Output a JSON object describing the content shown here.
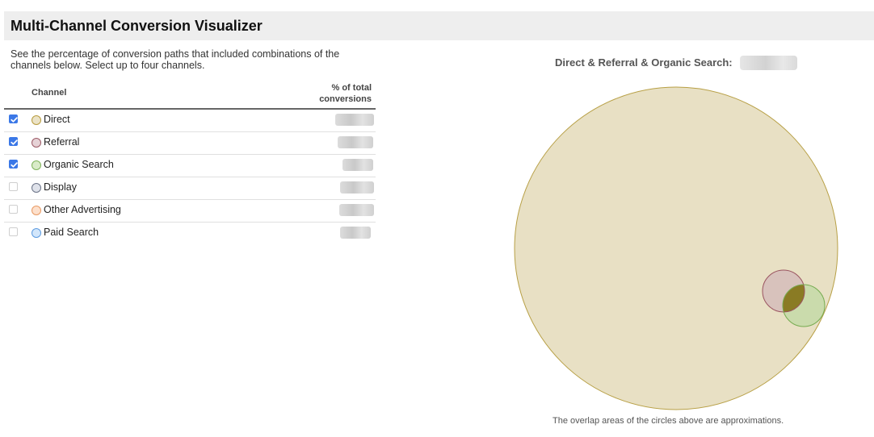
{
  "header": {
    "title": "Multi-Channel Conversion Visualizer"
  },
  "description": "See the percentage of conversion paths that included combinations of the channels below. Select up to four channels.",
  "table": {
    "col_channel": "Channel",
    "col_pct_line1": "% of total",
    "col_pct_line2": "conversions",
    "rows": [
      {
        "label": "Direct",
        "checked": true,
        "dot_fill": "#ebe3c7",
        "dot_border": "#b89b3e"
      },
      {
        "label": "Referral",
        "checked": true,
        "dot_fill": "#e6d2d6",
        "dot_border": "#9c5a66"
      },
      {
        "label": "Organic Search",
        "checked": true,
        "dot_fill": "#d9ebc8",
        "dot_border": "#7fb35b"
      },
      {
        "label": "Display",
        "checked": false,
        "dot_fill": "#dfe2ea",
        "dot_border": "#6c7488"
      },
      {
        "label": "Other Advertising",
        "checked": false,
        "dot_fill": "#fde0cc",
        "dot_border": "#e89a63"
      },
      {
        "label": "Paid Search",
        "checked": false,
        "dot_fill": "#d2e6fb",
        "dot_border": "#5d9be0"
      }
    ]
  },
  "visualization": {
    "title": "Direct & Referral & Organic Search:",
    "note": "The overlap areas of the circles above are approximations.",
    "colors": {
      "direct_fill": "#e8e0c4",
      "direct_stroke": "#b8a046",
      "referral_fill": "#d8c2bc",
      "referral_stroke": "#9a5460",
      "organic_fill": "#cadbac",
      "organic_stroke": "#76ab50",
      "overlap_fill": "#8a7b24"
    }
  }
}
